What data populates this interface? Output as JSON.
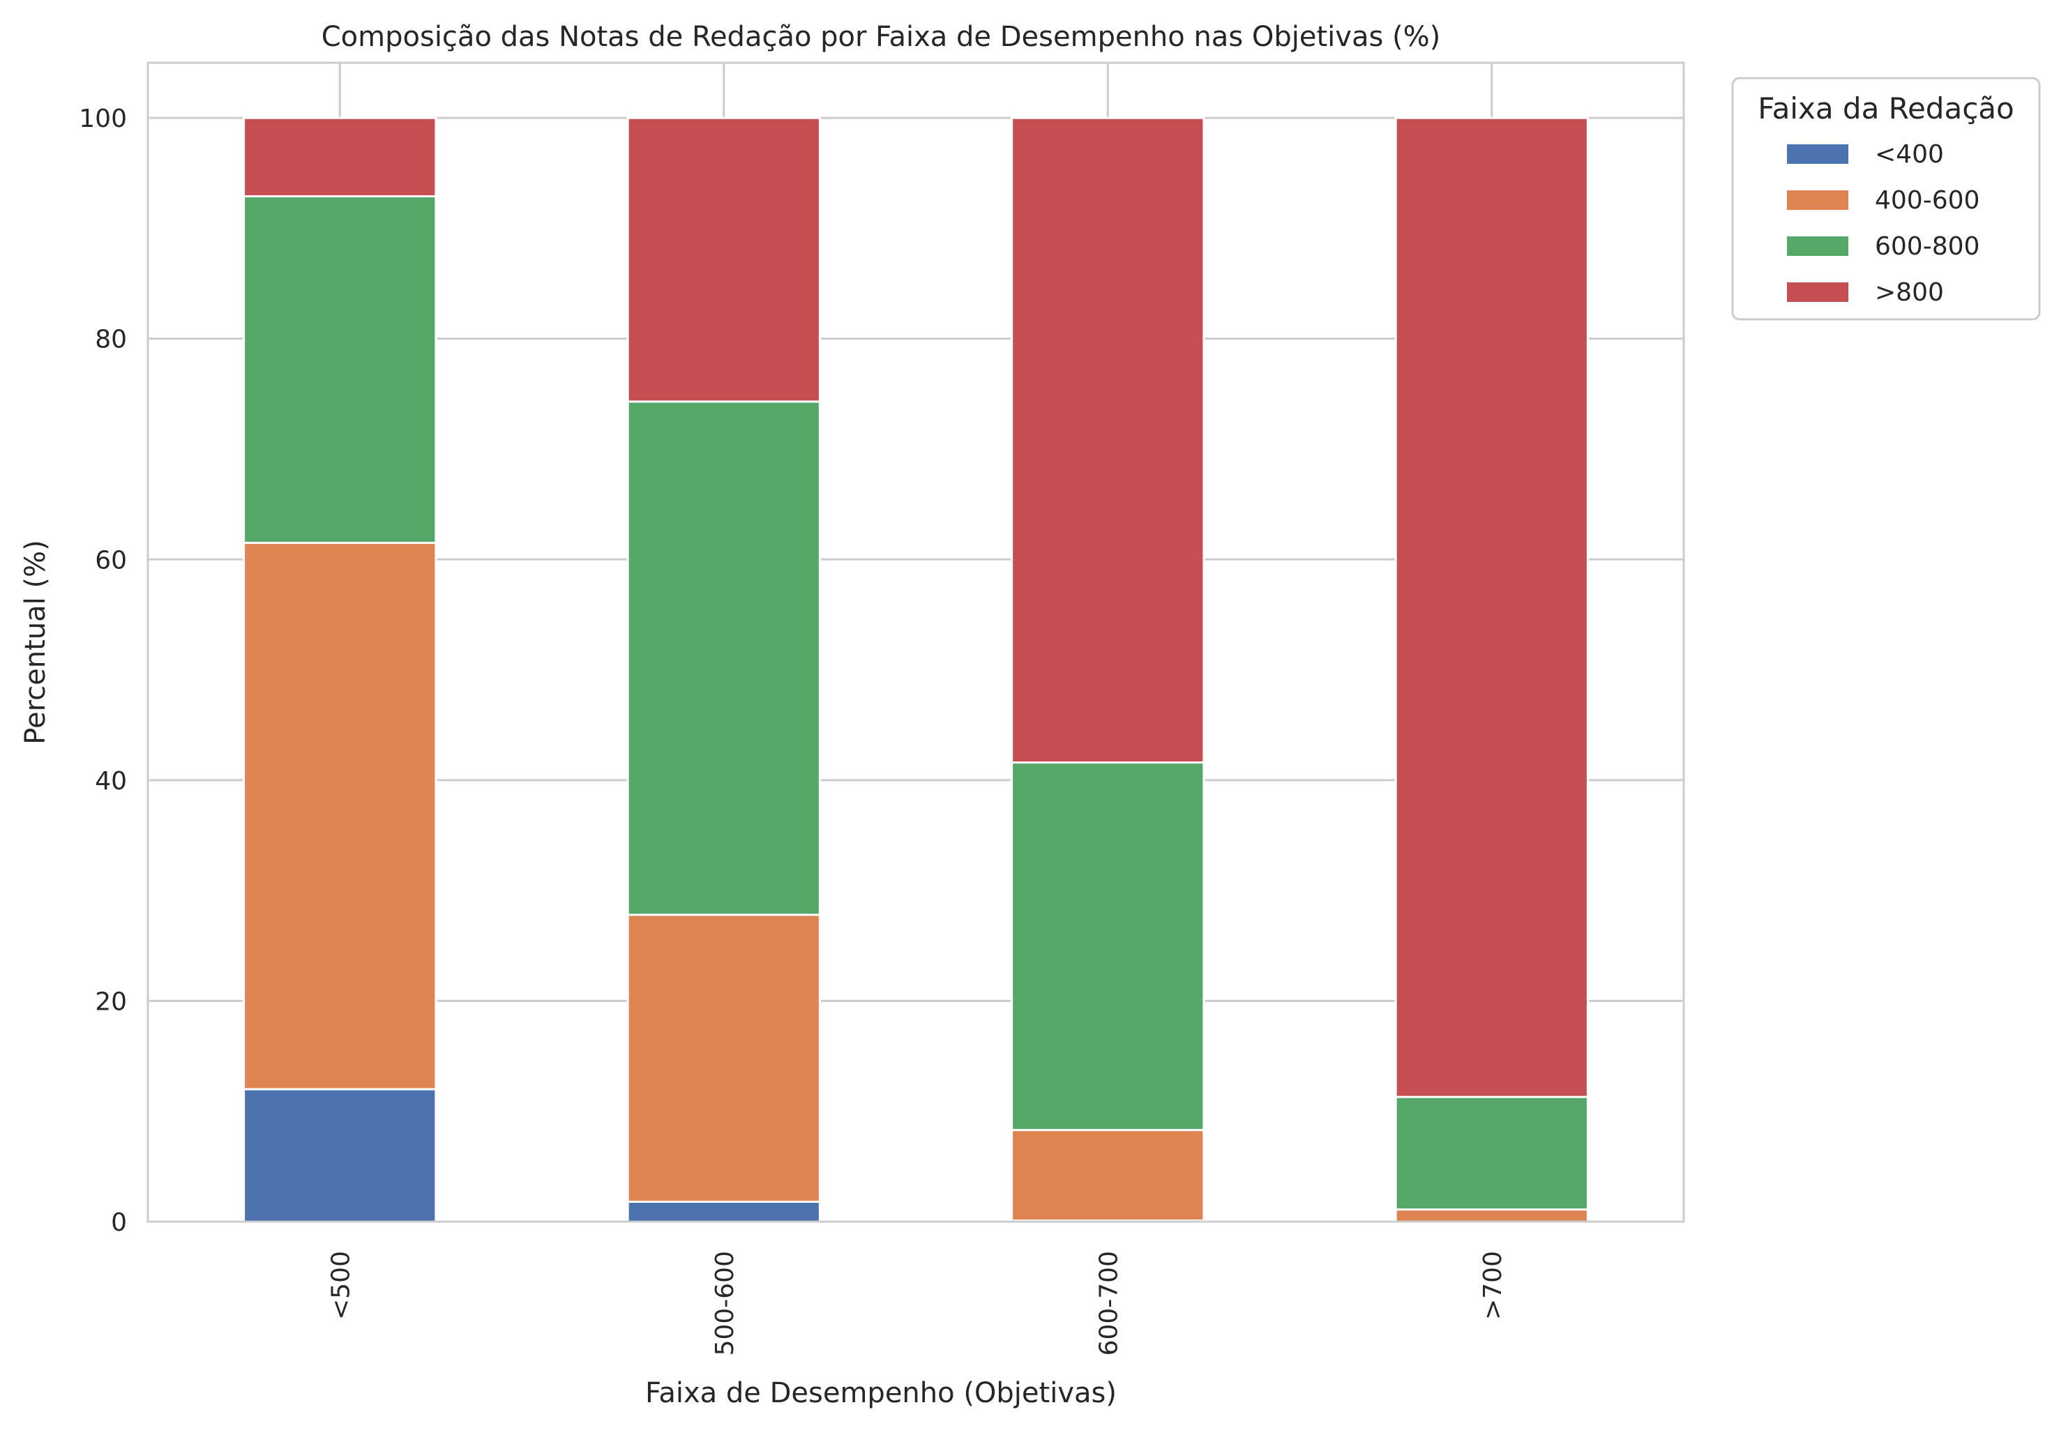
{
  "chart_data": {
    "type": "bar",
    "stacked": true,
    "title": "Composição das Notas de Redação por Faixa de Desempenho nas Objetivas (%)",
    "xlabel": "Faixa de Desempenho (Objetivas)",
    "ylabel": "Percentual (%)",
    "categories": [
      "<500",
      "500-600",
      "600-700",
      ">700"
    ],
    "ylim": [
      0,
      105
    ],
    "yticks": [
      0,
      20,
      40,
      60,
      80,
      100
    ],
    "grid": true,
    "legend": {
      "title": "Faixa da Redação",
      "placement": "outside-top-right"
    },
    "series": [
      {
        "name": "<400",
        "color": "#4c72b0",
        "values": [
          12.0,
          1.8,
          0.1,
          0.0
        ]
      },
      {
        "name": "400-600",
        "color": "#dd8452",
        "values": [
          49.5,
          26.0,
          8.2,
          1.1
        ]
      },
      {
        "name": "600-800",
        "color": "#55a868",
        "values": [
          31.4,
          46.5,
          33.3,
          10.2
        ]
      },
      {
        "name": ">800",
        "color": "#c44e52",
        "values": [
          7.1,
          25.7,
          58.4,
          88.7
        ]
      }
    ]
  }
}
